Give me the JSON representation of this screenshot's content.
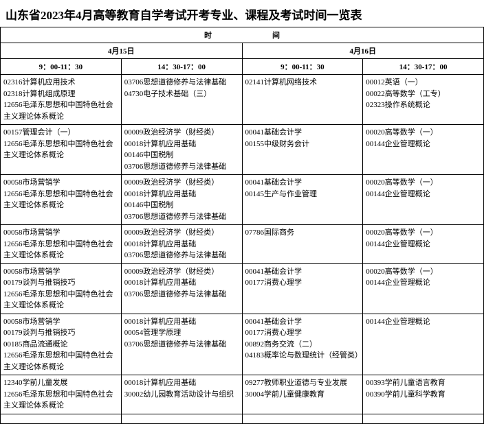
{
  "title": "山东省2023年4月高等教育自学考试开考专业、课程及考试时间一览表",
  "header": {
    "top": "时　　　　　　　　间",
    "day1": "4月15日",
    "day2": "4月16日",
    "slot1": "9：00-11：30",
    "slot2": "14：30-17：00",
    "slot3": "9：00-11：30",
    "slot4": "14：30-17：00"
  },
  "rows": [
    {
      "c1": [
        "02316计算机应用技术",
        "02318计算机组成原理",
        "12656毛泽东思想和中国特色社会主义理论体系概论"
      ],
      "c2": [
        "03706思想道德修养与法律基础",
        "04730电子技术基础（三）"
      ],
      "c3": [
        "02141计算机网络技术"
      ],
      "c4": [
        "00012英语（一）",
        "00022高等数学（工专）",
        "02323操作系统概论"
      ]
    },
    {
      "c1": [
        "00157管理会计（一）",
        "12656毛泽东思想和中国特色社会主义理论体系概论"
      ],
      "c2": [
        "00009政治经济学（财经类）",
        "00018计算机应用基础",
        "00146中国税制",
        "03706思想道德修养与法律基础"
      ],
      "c3": [
        "00041基础会计学",
        "00155中级财务会计"
      ],
      "c4": [
        "00020高等数学（一）",
        "00144企业管理概论"
      ]
    },
    {
      "c1": [
        "00058市场营销学",
        "12656毛泽东思想和中国特色社会主义理论体系概论"
      ],
      "c2": [
        "00009政治经济学（财经类）",
        "00018计算机应用基础",
        "00146中国税制",
        "03706思想道德修养与法律基础"
      ],
      "c3": [
        "00041基础会计学",
        "00145生产与作业管理"
      ],
      "c4": [
        "00020高等数学（一）",
        "00144企业管理概论"
      ]
    },
    {
      "c1": [
        "00058市场营销学",
        "12656毛泽东思想和中国特色社会主义理论体系概论"
      ],
      "c2": [
        "00009政治经济学（财经类）",
        "00018计算机应用基础",
        "03706思想道德修养与法律基础"
      ],
      "c3": [
        "07786国际商务"
      ],
      "c4": [
        "00020高等数学（一）",
        "00144企业管理概论"
      ]
    },
    {
      "c1": [
        "00058市场营销学",
        "00179谈判与推销技巧",
        "12656毛泽东思想和中国特色社会主义理论体系概论"
      ],
      "c2": [
        "00009政治经济学（财经类）",
        "00018计算机应用基础",
        "03706思想道德修养与法律基础"
      ],
      "c3": [
        "00041基础会计学",
        "00177消费心理学"
      ],
      "c4": [
        "00020高等数学（一）",
        "00144企业管理概论"
      ]
    },
    {
      "c1": [
        "00058市场营销学",
        "00179谈判与推销技巧",
        "00185商品流通概论",
        "12656毛泽东思想和中国特色社会主义理论体系概论"
      ],
      "c2": [
        "00018计算机应用基础",
        "00054管理学原理",
        "03706思想道德修养与法律基础"
      ],
      "c3": [
        "00041基础会计学",
        "00177消费心理学",
        "00892商务交流（二）",
        "04183概率论与数理统计（经管类）"
      ],
      "c4": [
        "00144企业管理概论"
      ]
    },
    {
      "c1": [
        "12340学前儿童发展",
        "12656毛泽东思想和中国特色社会主义理论体系概论"
      ],
      "c2": [
        "00018计算机应用基础",
        "30002幼儿园教育活动设计与组织"
      ],
      "c3": [
        "09277教师职业道德与专业发展",
        "30004学前儿童健康教育"
      ],
      "c4": [
        "00393学前儿童语言教育",
        "00390学前儿童科学教育"
      ]
    }
  ]
}
